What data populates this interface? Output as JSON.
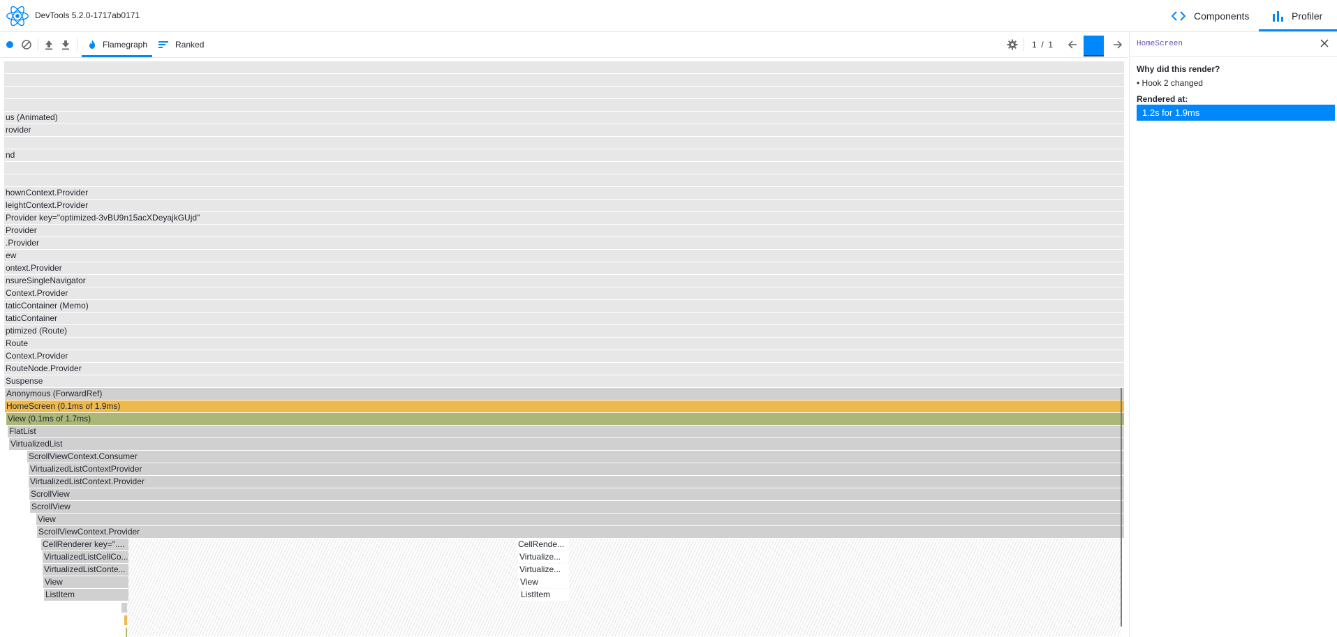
{
  "header": {
    "title": "DevTools 5.2.0-1717ab0171",
    "tabs": {
      "components": "Components",
      "profiler": "Profiler"
    }
  },
  "toolbar": {
    "flamegraph_label": "Flamegraph",
    "ranked_label": "Ranked",
    "commit_current": "1",
    "commit_separator": "/",
    "commit_total": "1"
  },
  "sidebar": {
    "title": "HomeScreen",
    "why_label": "Why did this render?",
    "why_reason": "• Hook 2 changed",
    "rendered_at_label": "Rendered at:",
    "rendered_at_value": "1.2s for 1.9ms"
  },
  "flamegraph": {
    "rows": [
      "",
      "",
      "",
      "",
      "us (Animated)",
      "rovider",
      "",
      "nd",
      "",
      "",
      "hownContext.Provider",
      "leightContext.Provider",
      "Provider key=\"optimized-3vBU9n15acXDeyajkGUjd\"",
      "Provider",
      ".Provider",
      "ew",
      "ontext.Provider",
      "nsureSingleNavigator",
      "Context.Provider",
      "taticContainer (Memo)",
      "taticContainer",
      "ptimized (Route)",
      "Route",
      "Context.Provider",
      "RouteNode.Provider",
      "Suspense",
      "Anonymous (ForwardRef)",
      "HomeScreen (0.1ms of 1.9ms)",
      "View (0.1ms of 1.7ms)",
      "FlatList",
      "VirtualizedList",
      "ScrollViewContext.Consumer",
      "VirtualizedListContextProvider",
      "VirtualizedListContext.Provider",
      "ScrollView",
      "ScrollView",
      "View",
      "ScrollViewContext.Provider"
    ],
    "cell_rows_left": [
      "CellRenderer key=\"....",
      "VirtualizedListCellCo...",
      "VirtualizedListConte...",
      "View",
      "ListItem"
    ],
    "cell_rows_mid": [
      "CellRende...",
      "Virtualize...",
      "Virtualize...",
      "View",
      "ListItem"
    ]
  },
  "colors": {
    "accent": "#0088fa",
    "highlight": "#efba4d",
    "child": "#aab779",
    "bar": "#e7e7e7",
    "bar_dark": "#d0d0d0"
  }
}
